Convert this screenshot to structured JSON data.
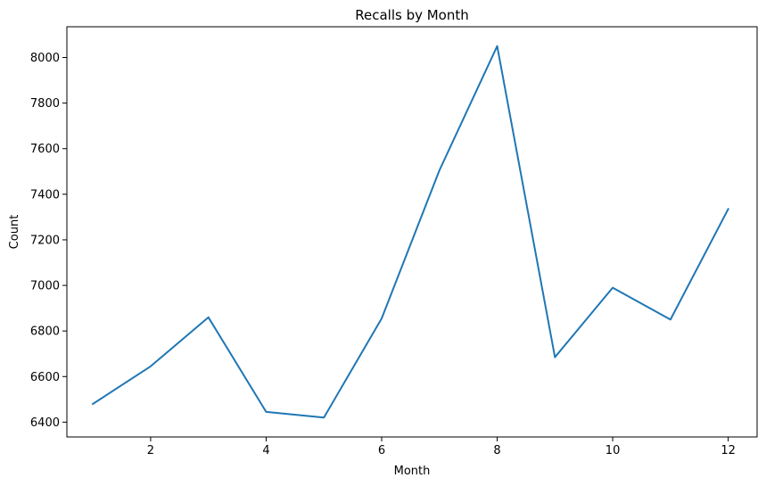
{
  "chart_data": {
    "type": "line",
    "title": "Recalls by Month",
    "xlabel": "Month",
    "ylabel": "Count",
    "x": [
      1,
      2,
      3,
      4,
      5,
      6,
      7,
      8,
      9,
      10,
      11,
      12
    ],
    "series": [
      {
        "values": [
          6480,
          6645,
          6860,
          6445,
          6420,
          6855,
          7505,
          8050,
          6685,
          6990,
          6850,
          7335
        ],
        "color": "#1f77b4"
      }
    ],
    "xlim": [
      0.55,
      12.5
    ],
    "ylim": [
      6335,
      8135
    ],
    "xticks": [
      2,
      4,
      6,
      8,
      10,
      12
    ],
    "yticks": [
      6400,
      6600,
      6800,
      7000,
      7200,
      7400,
      7600,
      7800,
      8000
    ],
    "grid": false
  }
}
